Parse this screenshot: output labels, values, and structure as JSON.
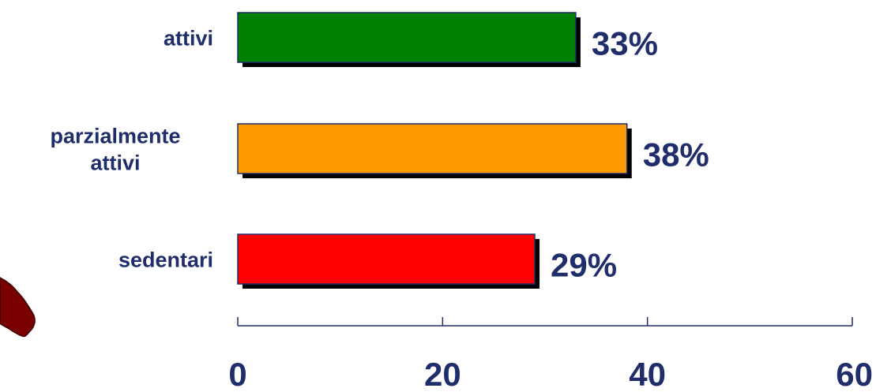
{
  "chart_data": {
    "type": "bar",
    "orientation": "horizontal",
    "categories": [
      [
        "attivi"
      ],
      [
        "parzialmente",
        "attivi"
      ],
      [
        "sedentari"
      ]
    ],
    "values": [
      33,
      38,
      29
    ],
    "value_labels": [
      "33%",
      "38%",
      "29%"
    ],
    "colors": [
      "#008000",
      "#ff9900",
      "#ff0000"
    ],
    "xlim": [
      0,
      60
    ],
    "xticks": [
      0,
      20,
      40,
      60
    ],
    "xtick_labels": [
      "0",
      "20",
      "40",
      "60"
    ],
    "title": "",
    "xlabel": "",
    "ylabel": "",
    "grid": false,
    "bar_style": "3d-shadow"
  }
}
